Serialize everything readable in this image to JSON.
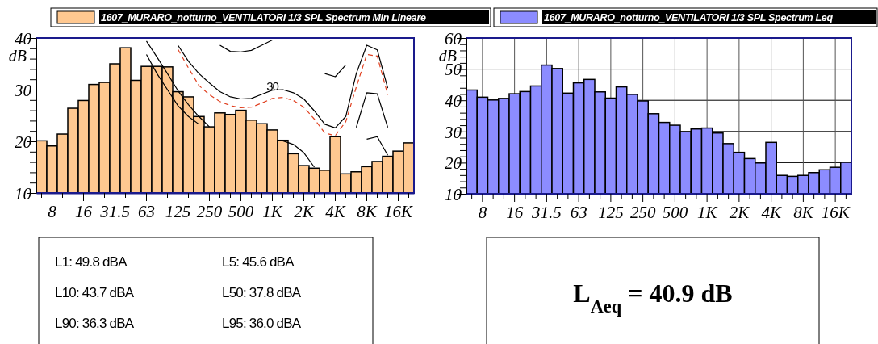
{
  "chart_data": [
    {
      "type": "bar",
      "categories": [
        null,
        "8",
        null,
        null,
        "16",
        null,
        null,
        "31.5",
        null,
        null,
        "63",
        null,
        null,
        "125",
        null,
        null,
        "250",
        null,
        null,
        "500",
        null,
        null,
        "1K",
        null,
        null,
        "2K",
        null,
        null,
        "4K",
        null,
        null,
        "8K",
        null,
        null,
        "16K",
        null
      ],
      "ylim": [
        10,
        40
      ],
      "yticks": [
        10,
        {
          "value": 12,
          "label": null
        },
        {
          "value": 14,
          "label": null
        },
        {
          "value": 16,
          "label": null
        },
        {
          "value": 18,
          "label": null
        },
        20,
        {
          "value": 22,
          "label": null
        },
        {
          "value": 24,
          "label": null
        },
        {
          "value": 26,
          "label": null
        },
        {
          "value": 28,
          "label": null
        },
        30,
        {
          "value": 32,
          "label": null
        },
        {
          "value": 34,
          "label": null
        },
        {
          "value": 36,
          "label": null
        },
        {
          "value": 38,
          "label": null
        },
        40
      ],
      "ylabel": "dB",
      "legend": "top",
      "series": [
        {
          "name": "1607_MURARO_notturno_VENTILATORI 1/3 SPL Spectrum Min Lineare",
          "color": "#ffc890",
          "values": [
            20.1,
            19.1,
            21.4,
            26.4,
            27.9,
            31.0,
            31.4,
            35.0,
            38.1,
            31.8,
            34.5,
            34.5,
            34.4,
            29.6,
            28.6,
            24.8,
            22.8,
            25.5,
            25.2,
            26.0,
            24.1,
            23.4,
            22.2,
            20.2,
            17.6,
            15.3,
            14.8,
            14.4,
            20.9,
            13.7,
            14.1,
            15.1,
            16.1,
            17.1,
            18.1,
            19.7
          ]
        },
        {
          "type": "line",
          "color": "#000000",
          "values": [
            null,
            null,
            null,
            null,
            null,
            null,
            null,
            null,
            null,
            null,
            null,
            null,
            null,
            null,
            null,
            null,
            null,
            38.6,
            37.4,
            37.3,
            37.6,
            38.6,
            39.6,
            null,
            null,
            null,
            null,
            33.1,
            32.5,
            34.8,
            null,
            null,
            null,
            null,
            null,
            null
          ]
        },
        {
          "type": "line",
          "color": "#000000",
          "values": [
            null,
            null,
            null,
            null,
            null,
            null,
            null,
            null,
            null,
            null,
            null,
            null,
            null,
            38.6,
            35.5,
            33.1,
            31.3,
            29.6,
            28.6,
            28.2,
            28.3,
            29.1,
            29.9,
            30.0,
            29.4,
            28.2,
            25.9,
            23.3,
            22.6,
            24.8,
            33.1,
            38.6,
            37.7,
            30.3,
            null,
            null
          ]
        },
        {
          "type": "line",
          "color": "#e04020",
          "line_style": "dashed",
          "values": [
            null,
            null,
            null,
            null,
            null,
            null,
            null,
            null,
            null,
            null,
            null,
            null,
            null,
            37.8,
            34.2,
            30.8,
            29.0,
            27.7,
            26.9,
            26.5,
            26.6,
            27.4,
            28.3,
            28.5,
            27.9,
            26.6,
            24.3,
            21.6,
            21.1,
            23.8,
            30.5,
            36.8,
            36.5,
            29.0,
            null,
            null
          ]
        },
        {
          "type": "line",
          "color": "#000000",
          "values": [
            null,
            null,
            null,
            null,
            null,
            null,
            null,
            null,
            null,
            null,
            39.4,
            36.3,
            33.1,
            29.8,
            27.1,
            24.8,
            22.8,
            null,
            null,
            null,
            null,
            null,
            null,
            20.1,
            19.4,
            17.8,
            15.0,
            null,
            null,
            null,
            22.7,
            29.4,
            29.2,
            22.7,
            null,
            null
          ]
        },
        {
          "type": "line",
          "color": "#000000",
          "values": [
            null,
            null,
            null,
            null,
            null,
            null,
            null,
            null,
            null,
            null,
            36.8,
            33.1,
            30.0,
            26.9,
            24.8,
            23.3,
            null,
            null,
            null,
            null,
            null,
            null,
            null,
            null,
            null,
            null,
            null,
            null,
            null,
            null,
            null,
            20.4,
            20.9,
            17.3,
            null,
            null
          ]
        }
      ],
      "annotations": [
        {
          "text": "30",
          "x": "1K",
          "y": 30.6
        }
      ]
    },
    {
      "type": "bar",
      "categories": [
        null,
        "8",
        null,
        null,
        "16",
        null,
        null,
        "31.5",
        null,
        null,
        "63",
        null,
        null,
        "125",
        null,
        null,
        "250",
        null,
        null,
        "500",
        null,
        null,
        "1K",
        null,
        null,
        "2K",
        null,
        null,
        "4K",
        null,
        null,
        "8K",
        null,
        null,
        "16K",
        null
      ],
      "ylim": [
        10,
        60
      ],
      "yticks": [
        10,
        {
          "value": 12,
          "label": null
        },
        {
          "value": 14,
          "label": null
        },
        {
          "value": 16,
          "label": null
        },
        {
          "value": 18,
          "label": null
        },
        20,
        {
          "value": 22,
          "label": null
        },
        {
          "value": 24,
          "label": null
        },
        {
          "value": 26,
          "label": null
        },
        {
          "value": 28,
          "label": null
        },
        30,
        {
          "value": 32,
          "label": null
        },
        {
          "value": 34,
          "label": null
        },
        {
          "value": 36,
          "label": null
        },
        {
          "value": 38,
          "label": null
        },
        40,
        {
          "value": 42,
          "label": null
        },
        {
          "value": 44,
          "label": null
        },
        {
          "value": 46,
          "label": null
        },
        {
          "value": 48,
          "label": null
        },
        50,
        {
          "value": 52,
          "label": null
        },
        {
          "value": 54,
          "label": null
        },
        {
          "value": 56,
          "label": null
        },
        {
          "value": 58,
          "label": null
        },
        60
      ],
      "ylabel": "dB",
      "legend": "top",
      "grid": true,
      "series": [
        {
          "name": "1607_MURARO_notturno_VENTILATORI 1/3 SPL Spectrum Leq",
          "color": "#8c8cff",
          "values": [
            43.3,
            41.0,
            40.1,
            40.6,
            42.1,
            42.8,
            44.6,
            51.3,
            50.2,
            42.3,
            45.6,
            46.7,
            42.7,
            40.7,
            44.3,
            41.9,
            39.8,
            35.7,
            32.9,
            32.0,
            29.9,
            30.8,
            31.1,
            29.5,
            26.1,
            23.3,
            21.3,
            19.9,
            26.5,
            15.9,
            15.6,
            15.9,
            16.8,
            17.7,
            18.5,
            20.1
          ]
        }
      ]
    },
    {
      "type": "other",
      "annotations": [
        "L1: 49.8 dBA",
        "L5: 45.6 dBA",
        "L10: 43.7 dBA",
        "L50: 37.8 dBA",
        "L90: 36.3 dBA",
        "L95: 36.0 dBA"
      ]
    },
    {
      "type": "other",
      "annotations": [
        "L$_{Aeq}$ = 40.9 dB"
      ]
    }
  ]
}
